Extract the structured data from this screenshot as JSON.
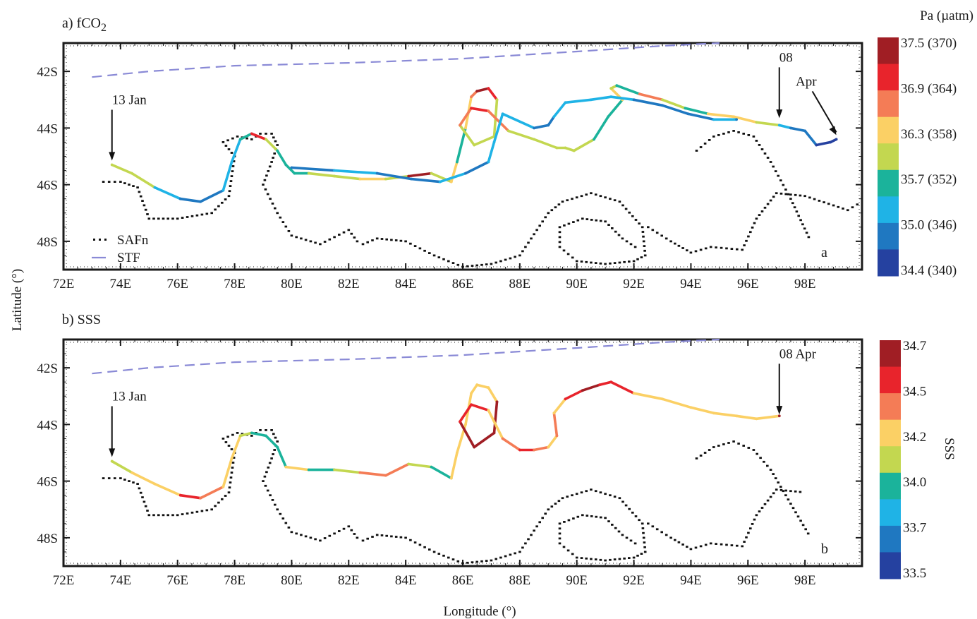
{
  "figure": {
    "ylabel": "Latitude (°)",
    "xlabel": "Longitude (°)"
  },
  "chart_data": [
    {
      "type": "scatter",
      "panel_title": "a) fCO",
      "panel_title_sub": "2",
      "panel_letter": "a",
      "x_ticks": [
        "72E",
        "74E",
        "76E",
        "78E",
        "80E",
        "82E",
        "84E",
        "86E",
        "88E",
        "90E",
        "92E",
        "94E",
        "96E",
        "98E"
      ],
      "y_ticks": [
        "42S",
        "44S",
        "46S",
        "48S"
      ],
      "xlim": [
        72,
        100
      ],
      "ylim": [
        -49,
        -41
      ],
      "colorbar": {
        "label": "Pa (µatm)",
        "tick_labels": [
          "37.5 (370)",
          "36.9 (364)",
          "36.3 (358)",
          "35.7 (352)",
          "35.0 (346)",
          "34.4 (340)"
        ],
        "colors": [
          "#a01e24",
          "#e8242c",
          "#f47c56",
          "#fbd065",
          "#c3d750",
          "#1bb39b",
          "#1fb3e6",
          "#1f78c1",
          "#2541a0"
        ]
      },
      "legend": {
        "position": "bottom-left",
        "entries": [
          {
            "name": "SAFn",
            "style": "dots"
          },
          {
            "name": "STF",
            "style": "dashed"
          }
        ]
      },
      "annotations": [
        {
          "text": "13 Jan",
          "x": 73.7,
          "y": -45.3
        },
        {
          "text": "08",
          "x": 97.1,
          "y": -43.8
        },
        {
          "text": "Apr",
          "x": 99.1,
          "y": -44.4
        }
      ],
      "series": [
        {
          "name": "STF",
          "line": "dashed",
          "color": "#8a8ad6",
          "x": [
            73,
            75,
            78,
            82,
            86,
            90,
            93,
            95
          ],
          "y": [
            -42.2,
            -42.0,
            -41.8,
            -41.7,
            -41.55,
            -41.3,
            -41.1,
            -41.0
          ]
        },
        {
          "name": "SAFn",
          "line": "dotted",
          "color": "#000000",
          "x": [
            73.4,
            74,
            74.6,
            75,
            76,
            77.2,
            77.8,
            78,
            77.6,
            78.1,
            78.6,
            78.9,
            79.3,
            79.5,
            79.3,
            79,
            79.5,
            80,
            81,
            82,
            82.3,
            82.5,
            83,
            84,
            85,
            86,
            87,
            88,
            89,
            89.5,
            90.5,
            91.5,
            92.3,
            92.4,
            92,
            91,
            90,
            89.4,
            89.4,
            90.2,
            91,
            91.6,
            92.2
          ],
          "y": [
            -45.9,
            -45.9,
            -46.1,
            -47.2,
            -47.2,
            -47,
            -46.4,
            -45,
            -44.5,
            -44.3,
            -44.4,
            -44.2,
            -44.2,
            -44.6,
            -45.2,
            -46,
            -47,
            -47.8,
            -48.1,
            -47.6,
            -48,
            -48.1,
            -47.9,
            -48,
            -48.5,
            -48.9,
            -48.8,
            -48.5,
            -47,
            -46.6,
            -46.3,
            -46.6,
            -47.5,
            -48.5,
            -48.7,
            -48.8,
            -48.7,
            -48.2,
            -47.5,
            -47.2,
            -47.3,
            -47.9,
            -48.3
          ]
        },
        {
          "name": "SAFn-east",
          "line": "dotted",
          "color": "#000000",
          "x": [
            92.5,
            93.3,
            94,
            94.7,
            95.8,
            96.3,
            97,
            98,
            99.5,
            100
          ],
          "y": [
            -47.5,
            -48,
            -48.4,
            -48.2,
            -48.3,
            -47.2,
            -46.3,
            -46.4,
            -46.9,
            -46.6
          ]
        },
        {
          "name": "SAFn-loop",
          "line": "dotted",
          "color": "#000000",
          "x": [
            94.2,
            94.8,
            95.5,
            96.2,
            96.8,
            97.5,
            98.2
          ],
          "y": [
            -44.8,
            -44.3,
            -44.1,
            -44.3,
            -45.2,
            -46.5,
            -48.0
          ]
        },
        {
          "name": "track",
          "line": "solid",
          "color_by": "value",
          "x": [
            73.7,
            74.4,
            75.2,
            76.1,
            76.8,
            77.6,
            77.9,
            78.2,
            78.6,
            79.1,
            79.5,
            79.8,
            80.1,
            80.6,
            81.5,
            82.4,
            83.3,
            84.1,
            84.9,
            85.6,
            85.8,
            86.1,
            86.3,
            86.5,
            86.9,
            87.2,
            87.1,
            86.4,
            85.9,
            86.3,
            86.9,
            87.6,
            88.5,
            89.3,
            89.6,
            89.9,
            90.6,
            91.1,
            91.6,
            91.2,
            91.4,
            92.2,
            93.0,
            93.8,
            94.6,
            95.5,
            96.3,
            97.1,
            97.5,
            98.0,
            98.4,
            98.9,
            99.1
          ],
          "y": [
            -45.3,
            -45.6,
            -46.1,
            -46.5,
            -46.6,
            -46.2,
            -45.2,
            -44.4,
            -44.2,
            -44.4,
            -44.8,
            -45.3,
            -45.6,
            -45.6,
            -45.7,
            -45.8,
            -45.8,
            -45.7,
            -45.6,
            -45.9,
            -45.2,
            -44.0,
            -42.9,
            -42.7,
            -42.6,
            -43.0,
            -44.3,
            -44.6,
            -43.9,
            -43.3,
            -43.4,
            -44.1,
            -44.4,
            -44.7,
            -44.7,
            -44.8,
            -44.4,
            -43.6,
            -43.0,
            -42.6,
            -42.5,
            -42.8,
            -43.0,
            -43.3,
            -43.5,
            -43.6,
            -43.8,
            -43.9,
            -44.0,
            -44.1,
            -44.6,
            -44.5,
            -44.4
          ],
          "values": [
            35.9,
            36.0,
            35.1,
            35.0,
            35.0,
            35.1,
            35.2,
            35.5,
            37.1,
            35.8,
            35.7,
            35.5,
            35.6,
            36.1,
            35.8,
            36.4,
            35.8,
            37.2,
            35.8,
            36.2,
            35.7,
            36.3,
            36.8,
            37.2,
            37.1,
            36.1,
            35.9,
            35.8,
            36.5,
            37.0,
            36.6,
            35.9,
            35.8,
            35.9,
            36.0,
            35.8,
            35.7,
            35.6,
            36.2,
            35.8,
            35.7,
            36.8,
            35.9,
            35.6,
            36.2,
            36.3,
            36.1,
            35.1,
            35.0,
            34.8,
            34.6,
            34.5,
            34.4
          ]
        },
        {
          "name": "track-return",
          "line": "solid",
          "color_by": "value",
          "x": [
            80.0,
            81.5,
            83.0,
            84.2,
            85.2,
            86.1,
            86.9,
            87.1,
            87.4,
            88.5,
            89.0,
            89.2,
            89.6,
            90.5,
            91.2,
            92.0,
            93.0,
            93.9,
            94.8,
            95.6
          ],
          "y": [
            -45.4,
            -45.5,
            -45.6,
            -45.8,
            -45.9,
            -45.6,
            -45.2,
            -44.5,
            -43.5,
            -44.0,
            -43.9,
            -43.6,
            -43.1,
            -43.0,
            -42.9,
            -43.0,
            -43.2,
            -43.5,
            -43.7,
            -43.7
          ],
          "values": [
            35.0,
            35.1,
            35.0,
            35.0,
            35.1,
            35.0,
            35.1,
            35.2,
            35.1,
            34.9,
            35.0,
            35.1,
            35.2,
            35.3,
            35.1,
            35.0,
            34.9,
            35.0,
            35.1,
            35.0
          ]
        }
      ]
    },
    {
      "type": "scatter",
      "panel_title": "b) SSS",
      "panel_title_sub": "",
      "panel_letter": "b",
      "x_ticks": [
        "72E",
        "74E",
        "76E",
        "78E",
        "80E",
        "82E",
        "84E",
        "86E",
        "88E",
        "90E",
        "92E",
        "94E",
        "96E",
        "98E"
      ],
      "y_ticks": [
        "42S",
        "44S",
        "46S",
        "48S"
      ],
      "xlim": [
        72,
        100
      ],
      "ylim": [
        -49,
        -41
      ],
      "colorbar": {
        "label": "SSS",
        "tick_labels": [
          "34.7",
          "34.5",
          "34.2",
          "34.0",
          "33.7",
          "33.5"
        ],
        "colors": [
          "#a01e24",
          "#e8242c",
          "#f47c56",
          "#fbd065",
          "#c3d750",
          "#1bb39b",
          "#1fb3e6",
          "#1f78c1",
          "#2541a0"
        ]
      },
      "annotations": [
        {
          "text": "13 Jan",
          "x": 73.7,
          "y": -45.3
        },
        {
          "text": "08 Apr",
          "x": 97.1,
          "y": -43.8
        }
      ],
      "series": [
        {
          "name": "STF",
          "line": "dashed",
          "color": "#8a8ad6",
          "x": [
            73,
            75,
            78,
            82,
            86,
            90,
            93,
            95
          ],
          "y": [
            -42.2,
            -42.0,
            -41.8,
            -41.7,
            -41.55,
            -41.3,
            -41.1,
            -41.0
          ]
        },
        {
          "name": "SAFn",
          "line": "dotted",
          "color": "#000000",
          "x": [
            73.4,
            74,
            74.6,
            75,
            76,
            77.2,
            77.8,
            78,
            77.6,
            78.1,
            78.6,
            78.9,
            79.3,
            79.5,
            79.3,
            79,
            79.5,
            80,
            81,
            82,
            82.3,
            82.5,
            83,
            84,
            85,
            86,
            87,
            88,
            89,
            89.5,
            90.5,
            91.5,
            92.3,
            92.4,
            92,
            91,
            90,
            89.4,
            89.4,
            90.2,
            91,
            91.6,
            92.2
          ],
          "y": [
            -45.9,
            -45.9,
            -46.1,
            -47.2,
            -47.2,
            -47,
            -46.4,
            -45,
            -44.5,
            -44.3,
            -44.4,
            -44.2,
            -44.2,
            -44.6,
            -45.2,
            -46,
            -47,
            -47.8,
            -48.1,
            -47.6,
            -48,
            -48.1,
            -47.9,
            -48,
            -48.5,
            -48.9,
            -48.8,
            -48.5,
            -47,
            -46.6,
            -46.3,
            -46.6,
            -47.5,
            -48.5,
            -48.7,
            -48.8,
            -48.7,
            -48.2,
            -47.5,
            -47.2,
            -47.3,
            -47.9,
            -48.3
          ]
        },
        {
          "name": "SAFn-east",
          "line": "dotted",
          "color": "#000000",
          "x": [
            92.5,
            93.3,
            94,
            94.7,
            95.8,
            96.3,
            97,
            98
          ],
          "y": [
            -47.5,
            -48,
            -48.4,
            -48.2,
            -48.3,
            -47.2,
            -46.3,
            -46.4
          ]
        },
        {
          "name": "SAFn-loop",
          "line": "dotted",
          "color": "#000000",
          "x": [
            94.2,
            94.8,
            95.5,
            96.2,
            96.8,
            97.5,
            98.2
          ],
          "y": [
            -45.2,
            -44.8,
            -44.6,
            -44.9,
            -45.6,
            -46.8,
            -48.0
          ]
        },
        {
          "name": "track",
          "line": "solid",
          "color_by": "value",
          "x": [
            73.7,
            74.4,
            75.2,
            76.1,
            76.8,
            77.6,
            77.9,
            78.2,
            78.6,
            79.1,
            79.5,
            79.8,
            80.6,
            81.5,
            82.4,
            83.3,
            84.1,
            84.9,
            85.6,
            85.8,
            86.1,
            86.3,
            86.5,
            86.9,
            87.2,
            87.1,
            86.4,
            85.9,
            86.3,
            86.9,
            87.4,
            88.0,
            88.5,
            89.0,
            89.3,
            89.2,
            89.6,
            90.2,
            90.8,
            91.2,
            92.0,
            93.0,
            94.0,
            94.8,
            95.6,
            96.3,
            97.1
          ],
          "y": [
            -45.3,
            -45.7,
            -46.1,
            -46.5,
            -46.6,
            -46.2,
            -45.2,
            -44.4,
            -44.3,
            -44.4,
            -44.8,
            -45.5,
            -45.6,
            -45.6,
            -45.7,
            -45.8,
            -45.4,
            -45.5,
            -45.9,
            -45.0,
            -44.0,
            -42.9,
            -42.6,
            -42.7,
            -43.2,
            -44.3,
            -44.8,
            -43.9,
            -43.3,
            -43.5,
            -44.5,
            -44.9,
            -44.9,
            -44.8,
            -44.4,
            -43.6,
            -43.1,
            -42.8,
            -42.6,
            -42.5,
            -42.9,
            -43.1,
            -43.4,
            -43.6,
            -43.7,
            -43.8,
            -43.7
          ],
          "values": [
            34.1,
            34.3,
            34.2,
            34.5,
            34.4,
            34.3,
            34.2,
            34.1,
            34.0,
            34.0,
            34.0,
            34.3,
            34.0,
            34.1,
            34.4,
            34.4,
            34.1,
            34.0,
            34.2,
            34.2,
            34.2,
            34.3,
            34.2,
            34.3,
            34.6,
            34.7,
            34.6,
            34.5,
            34.5,
            34.3,
            34.4,
            34.5,
            34.4,
            34.3,
            34.4,
            34.3,
            34.5,
            34.6,
            34.5,
            34.5,
            34.3,
            34.2,
            34.3,
            34.3,
            34.3,
            34.2,
            34.6
          ]
        }
      ]
    }
  ]
}
